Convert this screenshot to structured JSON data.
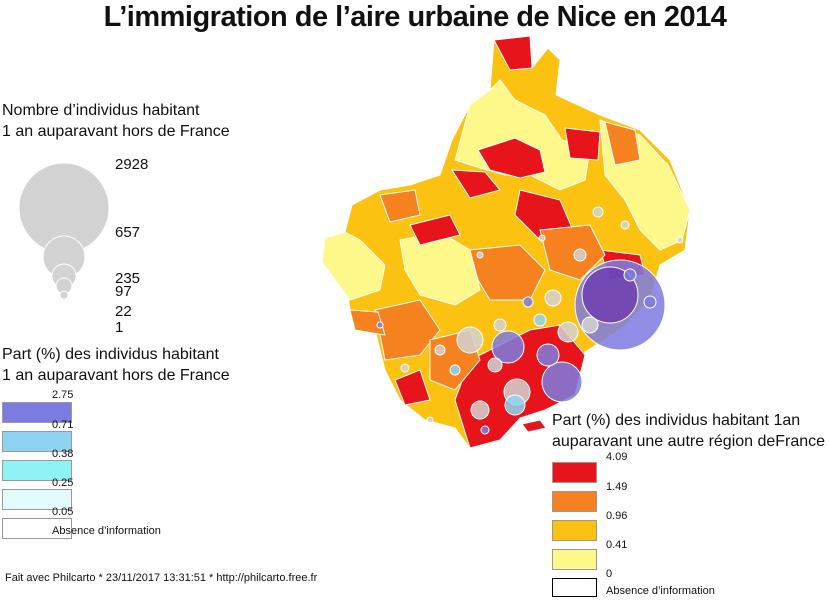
{
  "title": "L’immigration de l’aire urbaine de Nice en 2014",
  "size_legend": {
    "title_line1": "Nombre d’individus habitant",
    "title_line2": "1 an auparavant hors de France",
    "values": [
      "2928",
      "657",
      "235",
      "97",
      "22",
      "1"
    ]
  },
  "foreign_legend": {
    "title_line1": "Part (%) des individus habitant",
    "title_line2": "1 an auparavant hors de France",
    "breaks": [
      "2.75",
      "0.71",
      "0.38",
      "0.25",
      "0.05"
    ],
    "absence": "Absence d’information",
    "colors": [
      "#7c7be0",
      "#8fd3f2",
      "#8ff3f5",
      "#e2fcfd",
      "#ffffff"
    ]
  },
  "region_legend": {
    "title_line1": "Part (%) des individus habitant 1an",
    "title_line2": "auparavant une autre région deFrance",
    "breaks": [
      "4.09",
      "1.49",
      "0.96",
      "0.41",
      "0"
    ],
    "absence": "Absence d’information",
    "colors": [
      "#e8141b",
      "#f5821f",
      "#fbc211",
      "#fef88a",
      "#ffffff"
    ]
  },
  "credit": "Fait avec Philcarto * 23/11/2017 13:31:51 * http://philcarto.free.fr"
}
